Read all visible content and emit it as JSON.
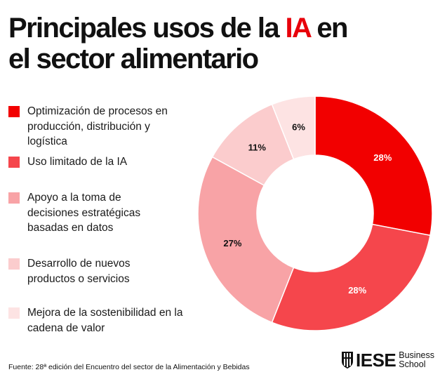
{
  "title": {
    "part1": "Principales usos de la ",
    "highlight": "IA",
    "part2": " en",
    "line2": "el sector alimentario"
  },
  "source": "Fuente: 28ª edición del Encuentro del sector de la Alimentación y Bebidas",
  "logo": {
    "name": "IESE",
    "line1": "Business",
    "line2": "School"
  },
  "colors": {
    "accent": "#e8000b"
  },
  "chart_data": {
    "type": "pie",
    "title": "Principales usos de la IA en el sector alimentario",
    "donut": true,
    "legend_position": "left",
    "series": [
      {
        "name": "Optimización de procesos en producción, distribución y logística",
        "value": 28,
        "label": "28%",
        "color": "#f20000",
        "label_color": "#ffffff"
      },
      {
        "name": "Uso limitado de la IA",
        "value": 28,
        "label": "28%",
        "color": "#f5464c",
        "label_color": "#ffffff"
      },
      {
        "name": "Apoyo a la toma de decisiones estratégicas basadas en datos",
        "value": 27,
        "label": "27%",
        "color": "#f8a3a6",
        "label_color": "#111111"
      },
      {
        "name": "Desarrollo de nuevos productos o servicios",
        "value": 11,
        "label": "11%",
        "color": "#fbcccd",
        "label_color": "#111111"
      },
      {
        "name": "Mejora de la sostenibilidad en la cadena de valor",
        "value": 6,
        "label": "6%",
        "color": "#fde3e3",
        "label_color": "#111111"
      }
    ]
  }
}
